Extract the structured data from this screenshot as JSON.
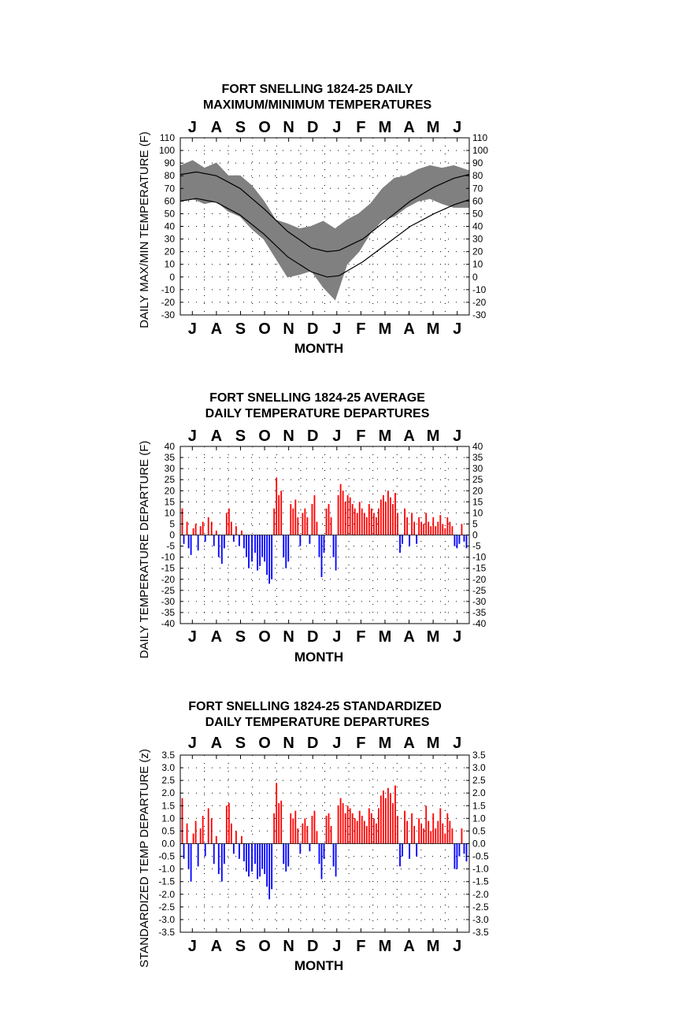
{
  "chart_data": [
    {
      "type": "line",
      "title_lines": [
        "FORT SNELLING 1824-25 DAILY",
        "MAXIMUM/MINIMUM TEMPERATURES"
      ],
      "ylabel": "DAILY MAX/MIN TEMPERATURE (F)",
      "xlabel": "MONTH",
      "months": [
        "J",
        "A",
        "S",
        "O",
        "N",
        "D",
        "J",
        "F",
        "M",
        "A",
        "M",
        "J"
      ],
      "ylim": [
        -30,
        110
      ],
      "yticks": [
        "110",
        "100",
        "90",
        "80",
        "70",
        "60",
        "50",
        "40",
        "30",
        "20",
        "10",
        "0",
        "-10",
        "-20",
        "-30"
      ],
      "grid": "dotted",
      "series": [
        {
          "key": "daily_range",
          "style": "gray band",
          "color": "#808080",
          "x": [
            0,
            15,
            30,
            45,
            60,
            75,
            90,
            105,
            120,
            135,
            150,
            165,
            180,
            195,
            210,
            225,
            240,
            255,
            270,
            285,
            300,
            315,
            330,
            345,
            364
          ],
          "upper": [
            88,
            92,
            86,
            90,
            80,
            80,
            72,
            60,
            45,
            42,
            38,
            40,
            44,
            38,
            45,
            50,
            58,
            70,
            78,
            80,
            85,
            88,
            86,
            88,
            84
          ],
          "lower": [
            60,
            62,
            58,
            60,
            52,
            48,
            38,
            30,
            15,
            0,
            2,
            5,
            -8,
            -18,
            10,
            20,
            35,
            45,
            48,
            55,
            60,
            62,
            58,
            55,
            55
          ]
        },
        {
          "key": "normal_max",
          "style": "black line",
          "color": "#000000",
          "x": [
            0,
            20,
            45,
            75,
            105,
            135,
            165,
            185,
            200,
            230,
            260,
            290,
            320,
            345,
            364
          ],
          "y": [
            81,
            83,
            80,
            70,
            54,
            36,
            23,
            20,
            21,
            30,
            45,
            60,
            71,
            78,
            81
          ]
        },
        {
          "key": "normal_min",
          "style": "black line",
          "color": "#000000",
          "x": [
            0,
            20,
            45,
            75,
            105,
            135,
            165,
            185,
            200,
            230,
            260,
            290,
            320,
            345,
            364
          ],
          "y": [
            60,
            62,
            59,
            49,
            34,
            16,
            4,
            0,
            1,
            12,
            26,
            40,
            50,
            57,
            61
          ]
        }
      ]
    },
    {
      "type": "bar",
      "title_lines": [
        "FORT SNELLING 1824-25 AVERAGE",
        "DAILY TEMPERATURE DEPARTURES"
      ],
      "ylabel": "DAILY TEMPERATURE DEPARTURE (F)",
      "xlabel": "MONTH",
      "months": [
        "J",
        "A",
        "S",
        "O",
        "N",
        "D",
        "J",
        "F",
        "M",
        "A",
        "M",
        "J"
      ],
      "ylim": [
        -40,
        40
      ],
      "yticks": [
        "40",
        "35",
        "30",
        "25",
        "20",
        "15",
        "10",
        "5",
        "0",
        "-5",
        "-10",
        "-15",
        "-20",
        "-25",
        "-30",
        "-35",
        "-40"
      ],
      "grid": "dotted",
      "positive_color": "#ff0000",
      "negative_color": "#0000ff",
      "x": [
        2,
        4,
        8,
        10,
        13,
        16,
        19,
        22,
        25,
        28,
        31,
        35,
        39,
        42,
        45,
        48,
        52,
        55,
        58,
        61,
        64,
        67,
        70,
        74,
        77,
        80,
        83,
        86,
        90,
        94,
        97,
        100,
        103,
        106,
        109,
        112,
        115,
        118,
        121,
        124,
        127,
        130,
        133,
        136,
        139,
        142,
        145,
        148,
        151,
        154,
        157,
        160,
        163,
        166,
        169,
        172,
        175,
        178,
        181,
        184,
        187,
        190,
        193,
        196,
        199,
        202,
        205,
        208,
        211,
        214,
        217,
        220,
        223,
        226,
        229,
        232,
        235,
        238,
        241,
        244,
        247,
        250,
        253,
        256,
        259,
        262,
        265,
        268,
        271,
        274,
        277,
        280,
        283,
        286,
        289,
        292,
        295,
        298,
        301,
        304,
        307,
        310,
        313,
        316,
        319,
        322,
        325,
        328,
        331,
        334,
        337,
        340,
        343,
        346,
        349,
        352,
        355,
        358,
        361
      ],
      "values": [
        12,
        -4,
        6,
        -6,
        -9,
        3,
        5,
        -7,
        4,
        6,
        -3,
        8,
        6,
        -5,
        2,
        -10,
        -13,
        -6,
        10,
        12,
        6,
        -3,
        4,
        -5,
        2,
        -6,
        -10,
        -15,
        -12,
        -8,
        -16,
        -14,
        -10,
        -12,
        -18,
        -22,
        -20,
        12,
        26,
        18,
        20,
        -10,
        -15,
        -12,
        14,
        12,
        16,
        8,
        -5,
        10,
        12,
        8,
        -4,
        14,
        18,
        6,
        -10,
        -19,
        -8,
        12,
        14,
        8,
        -10,
        -16,
        18,
        23,
        20,
        15,
        18,
        17,
        14,
        12,
        10,
        15,
        12,
        10,
        8,
        14,
        12,
        10,
        8,
        12,
        16,
        18,
        15,
        20,
        17,
        14,
        19,
        10,
        -8,
        -4,
        12,
        8,
        -5,
        10,
        6,
        -4,
        8,
        6,
        5,
        10,
        6,
        4,
        8,
        4,
        6,
        9,
        5,
        3,
        8,
        6,
        4,
        -5,
        -6,
        -4,
        5,
        -3,
        -6
      ]
    },
    {
      "type": "bar",
      "title_lines": [
        "FORT SNELLING 1824-25 STANDARDIZED",
        "DAILY TEMPERATURE DEPARTURES"
      ],
      "ylabel": "STANDARDIZED TEMP DEPARTURE (z)",
      "xlabel": "MONTH",
      "months": [
        "J",
        "A",
        "S",
        "O",
        "N",
        "D",
        "J",
        "F",
        "M",
        "A",
        "M",
        "J"
      ],
      "ylim": [
        -3.5,
        3.5
      ],
      "yticks": [
        "3.5",
        "3.0",
        "2.5",
        "2.0",
        "1.5",
        "1.0",
        "0.5",
        "0.0",
        "-0.5",
        "-1.0",
        "-1.5",
        "-2.0",
        "-2.5",
        "-3.0",
        "-3.5"
      ],
      "grid": "dotted",
      "positive_color": "#ff0000",
      "negative_color": "#0000ff",
      "x": [
        2,
        4,
        8,
        10,
        13,
        16,
        19,
        22,
        25,
        28,
        31,
        35,
        39,
        42,
        45,
        48,
        52,
        55,
        58,
        61,
        64,
        67,
        70,
        74,
        77,
        80,
        83,
        86,
        90,
        94,
        97,
        100,
        103,
        106,
        109,
        112,
        115,
        118,
        121,
        124,
        127,
        130,
        133,
        136,
        139,
        142,
        145,
        148,
        151,
        154,
        157,
        160,
        163,
        166,
        169,
        172,
        175,
        178,
        181,
        184,
        187,
        190,
        193,
        196,
        199,
        202,
        205,
        208,
        211,
        214,
        217,
        220,
        223,
        226,
        229,
        232,
        235,
        238,
        241,
        244,
        247,
        250,
        253,
        256,
        259,
        262,
        265,
        268,
        271,
        274,
        277,
        280,
        283,
        286,
        289,
        292,
        295,
        298,
        301,
        304,
        307,
        310,
        313,
        316,
        319,
        322,
        325,
        328,
        331,
        334,
        337,
        340,
        343,
        346,
        349,
        352,
        355,
        358,
        361
      ],
      "values": [
        1.8,
        -0.6,
        0.8,
        -1.0,
        -1.5,
        0.4,
        0.9,
        -0.9,
        0.6,
        1.1,
        -0.5,
        1.4,
        1.0,
        -0.8,
        0.3,
        -1.2,
        -1.5,
        -0.8,
        1.5,
        1.6,
        0.8,
        -0.4,
        0.5,
        -0.6,
        0.3,
        -0.7,
        -1.1,
        -1.3,
        -1.1,
        -0.8,
        -1.4,
        -1.3,
        -1.0,
        -1.2,
        -1.7,
        -2.2,
        -1.8,
        1.2,
        2.4,
        1.6,
        1.7,
        -0.8,
        -1.1,
        -0.9,
        1.2,
        1.0,
        1.3,
        0.6,
        -0.4,
        0.8,
        1.0,
        0.7,
        -0.3,
        1.1,
        1.3,
        0.5,
        -0.8,
        -1.4,
        -0.6,
        1.1,
        1.2,
        0.7,
        -0.9,
        -1.3,
        1.5,
        1.8,
        1.6,
        1.2,
        1.5,
        1.4,
        1.2,
        1.0,
        0.9,
        1.3,
        1.1,
        0.9,
        0.7,
        1.4,
        1.2,
        1.0,
        0.8,
        1.4,
        1.9,
        2.1,
        1.8,
        2.2,
        2.0,
        1.6,
        2.3,
        1.1,
        -0.9,
        -0.5,
        1.3,
        0.9,
        -0.6,
        1.2,
        0.7,
        -0.5,
        1.0,
        0.8,
        0.6,
        1.5,
        0.9,
        0.5,
        1.2,
        0.6,
        0.9,
        1.4,
        0.8,
        0.4,
        1.2,
        0.9,
        0.6,
        -1.0,
        -1.0,
        -0.5,
        0.6,
        -0.4,
        -0.7
      ]
    }
  ]
}
